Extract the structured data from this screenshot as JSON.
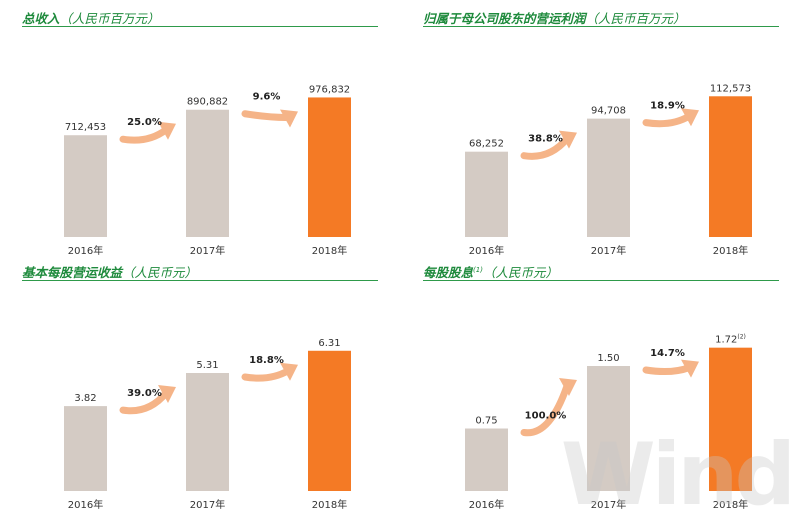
{
  "panels": [
    {
      "title": "总收入",
      "unit": "（人民币百万元）",
      "sup": "",
      "chart_data": {
        "type": "bar",
        "categories": [
          "2016年",
          "2017年",
          "2018年"
        ],
        "values": [
          712453,
          890882,
          976832
        ],
        "value_labels": [
          "712,453",
          "890,882",
          "976,832"
        ],
        "growth": [
          "25.0%",
          "9.6%"
        ],
        "ylim": [
          0,
          1400000
        ]
      }
    },
    {
      "title": "归属于母公司股东的营运利润",
      "unit": "（人民币百万元）",
      "sup": "",
      "chart_data": {
        "type": "bar",
        "categories": [
          "2016年",
          "2017年",
          "2018年"
        ],
        "values": [
          68252,
          94708,
          112573
        ],
        "value_labels": [
          "68,252",
          "94,708",
          "112,573"
        ],
        "growth": [
          "38.8%",
          "18.9%"
        ],
        "ylim": [
          0,
          160000
        ]
      }
    },
    {
      "title": "基本每股营运收益",
      "unit": "（人民币元）",
      "sup": "",
      "chart_data": {
        "type": "bar",
        "categories": [
          "2016年",
          "2017年",
          "2018年"
        ],
        "values": [
          3.82,
          5.31,
          6.31
        ],
        "value_labels": [
          "3.82",
          "5.31",
          "6.31"
        ],
        "growth": [
          "39.0%",
          "18.8%"
        ],
        "ylim": [
          0,
          9
        ]
      }
    },
    {
      "title": "每股股息",
      "unit": "（人民币元）",
      "sup": "(1)",
      "chart_data": {
        "type": "bar",
        "categories": [
          "2016年",
          "2017年",
          "2018年"
        ],
        "values": [
          0.75,
          1.5,
          1.72
        ],
        "value_labels": [
          "0.75",
          "1.50",
          "1.72"
        ],
        "value_label_sup": "(2)",
        "growth": [
          "100.0%",
          "14.7%"
        ],
        "ylim": [
          0,
          2.4
        ]
      }
    }
  ],
  "colors": {
    "past": "#d4cbc4",
    "current": "#f47a25",
    "arrow": "#f5b488",
    "title": "#1e8a3c"
  },
  "watermark": "Wind"
}
